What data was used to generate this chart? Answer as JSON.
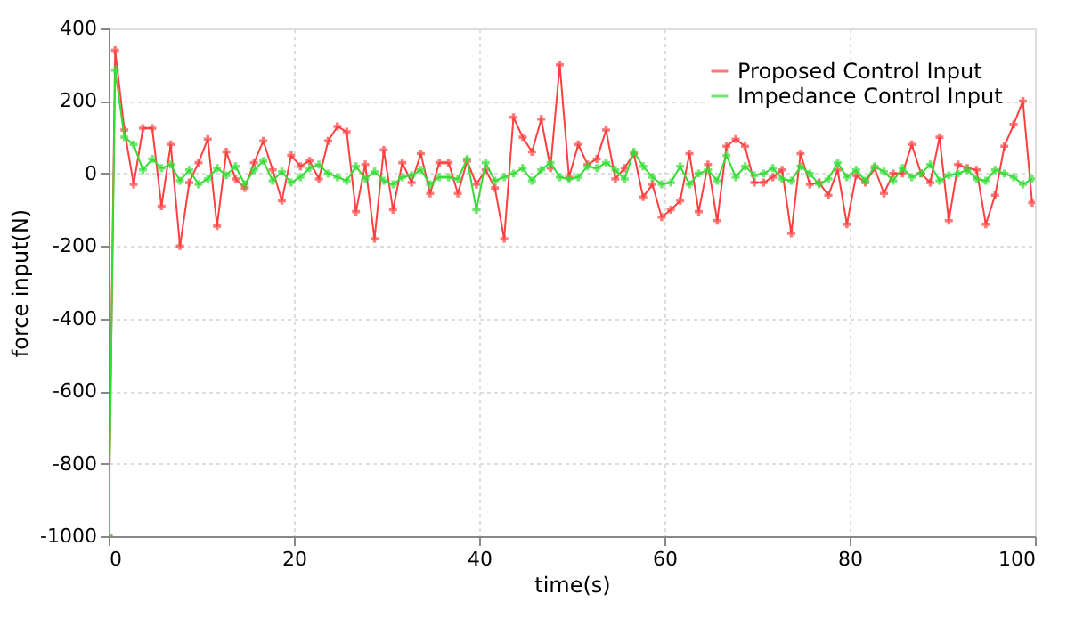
{
  "chart_data": {
    "type": "line",
    "xlabel": "time(s)",
    "ylabel": "force input(N)",
    "x": [
      0,
      0.7,
      1.7,
      2.7,
      3.7,
      4.7,
      5.7,
      6.7,
      7.7,
      8.7,
      9.7,
      10.7,
      11.7,
      12.7,
      13.7,
      14.7,
      15.7,
      16.7,
      17.7,
      18.7,
      19.7,
      20.7,
      21.7,
      22.7,
      23.7,
      24.7,
      25.7,
      26.7,
      27.7,
      28.7,
      29.7,
      30.7,
      31.7,
      32.7,
      33.7,
      34.7,
      35.7,
      36.7,
      37.7,
      38.7,
      39.7,
      40.7,
      41.7,
      42.7,
      43.7,
      44.7,
      45.7,
      46.7,
      47.7,
      48.7,
      49.7,
      50.7,
      51.7,
      52.7,
      53.7,
      54.7,
      55.7,
      56.7,
      57.7,
      58.7,
      59.7,
      60.7,
      61.7,
      62.7,
      63.7,
      64.7,
      65.7,
      66.7,
      67.7,
      68.7,
      69.7,
      70.7,
      71.7,
      72.7,
      73.7,
      74.7,
      75.7,
      76.7,
      77.7,
      78.7,
      79.7,
      80.7,
      81.7,
      82.7,
      83.7,
      84.7,
      85.7,
      86.7,
      87.7,
      88.7,
      89.7,
      90.7,
      91.7,
      92.7,
      93.7,
      94.7,
      95.7,
      96.7,
      97.7,
      98.7,
      99.7
    ],
    "series": [
      {
        "name": "Proposed Control Input",
        "color": "#ff4040",
        "marker": "cross",
        "values": [
          -1000,
          340,
          120,
          -30,
          125,
          125,
          -90,
          80,
          -200,
          -25,
          30,
          95,
          -145,
          60,
          -15,
          -40,
          30,
          90,
          10,
          -75,
          50,
          20,
          35,
          -15,
          90,
          130,
          115,
          -105,
          25,
          -180,
          65,
          -100,
          30,
          -25,
          55,
          -55,
          30,
          30,
          -55,
          35,
          -30,
          10,
          -40,
          -180,
          155,
          100,
          60,
          150,
          15,
          300,
          -10,
          80,
          25,
          40,
          120,
          -15,
          15,
          55,
          -65,
          -30,
          -120,
          -100,
          -75,
          55,
          -105,
          25,
          -130,
          75,
          95,
          75,
          -25,
          -25,
          -10,
          10,
          -165,
          55,
          -30,
          -25,
          -60,
          10,
          -140,
          -5,
          -25,
          15,
          -55,
          0,
          0,
          80,
          0,
          -25,
          100,
          -130,
          25,
          15,
          10,
          -140,
          -60,
          75,
          135,
          200,
          -80
        ]
      },
      {
        "name": "Impedance Control Input",
        "color": "#33dd33",
        "marker": "cross",
        "values": [
          -1000,
          285,
          100,
          80,
          10,
          40,
          15,
          25,
          -20,
          10,
          -30,
          -15,
          15,
          -5,
          20,
          -30,
          10,
          35,
          -20,
          5,
          -25,
          -10,
          15,
          25,
          0,
          -10,
          -20,
          20,
          -15,
          5,
          -20,
          -30,
          -10,
          -5,
          10,
          -30,
          -10,
          -10,
          -15,
          40,
          -100,
          30,
          -20,
          -10,
          0,
          15,
          -20,
          10,
          30,
          -10,
          -15,
          -10,
          20,
          15,
          30,
          10,
          -15,
          60,
          20,
          -10,
          -30,
          -25,
          20,
          -30,
          0,
          10,
          -20,
          50,
          -10,
          20,
          -5,
          0,
          15,
          -15,
          -20,
          20,
          0,
          -30,
          -15,
          30,
          -10,
          10,
          -20,
          20,
          5,
          -20,
          15,
          -10,
          0,
          25,
          -20,
          -5,
          0,
          10,
          -15,
          -20,
          10,
          0,
          -10,
          -30,
          -15
        ]
      }
    ],
    "xlim": [
      0,
      100
    ],
    "xticks": [
      0,
      20,
      40,
      60,
      80,
      100
    ],
    "ylim": [
      -1000,
      400
    ],
    "yticks": [
      -1000,
      -800,
      -600,
      -400,
      -200,
      0,
      200,
      400
    ],
    "grid": true,
    "legend": "top right",
    "line_style": "solid"
  }
}
